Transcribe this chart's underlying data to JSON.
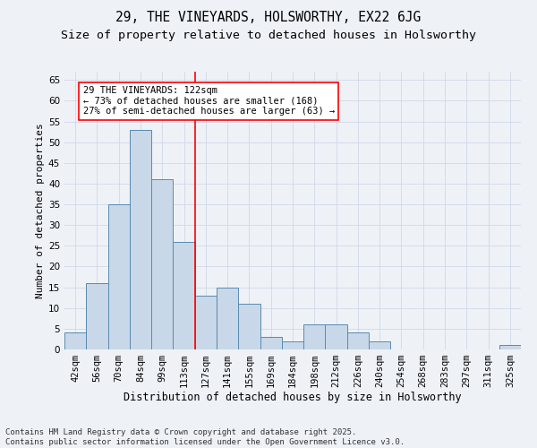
{
  "title_line1": "29, THE VINEYARDS, HOLSWORTHY, EX22 6JG",
  "title_line2": "Size of property relative to detached houses in Holsworthy",
  "xlabel": "Distribution of detached houses by size in Holsworthy",
  "ylabel": "Number of detached properties",
  "categories": [
    "42sqm",
    "56sqm",
    "70sqm",
    "84sqm",
    "99sqm",
    "113sqm",
    "127sqm",
    "141sqm",
    "155sqm",
    "169sqm",
    "184sqm",
    "198sqm",
    "212sqm",
    "226sqm",
    "240sqm",
    "254sqm",
    "268sqm",
    "283sqm",
    "297sqm",
    "311sqm",
    "325sqm"
  ],
  "values": [
    4,
    16,
    35,
    53,
    41,
    26,
    13,
    15,
    11,
    3,
    2,
    6,
    6,
    4,
    2,
    0,
    0,
    0,
    0,
    0,
    1
  ],
  "bar_color": "#c8d8e8",
  "bar_edge_color": "#5a8ab0",
  "grid_color": "#d0d8e8",
  "background_color": "#eef2f7",
  "red_line_x": 5.5,
  "annotation_text": "29 THE VINEYARDS: 122sqm\n← 73% of detached houses are smaller (168)\n27% of semi-detached houses are larger (63) →",
  "annotation_box_color": "white",
  "annotation_box_edge": "red",
  "ylim": [
    0,
    67
  ],
  "yticks": [
    0,
    5,
    10,
    15,
    20,
    25,
    30,
    35,
    40,
    45,
    50,
    55,
    60,
    65
  ],
  "footer": "Contains HM Land Registry data © Crown copyright and database right 2025.\nContains public sector information licensed under the Open Government Licence v3.0.",
  "title_fontsize": 10.5,
  "subtitle_fontsize": 9.5,
  "xlabel_fontsize": 8.5,
  "ylabel_fontsize": 8,
  "tick_fontsize": 7.5,
  "footer_fontsize": 6.5,
  "ann_fontsize": 7.5
}
